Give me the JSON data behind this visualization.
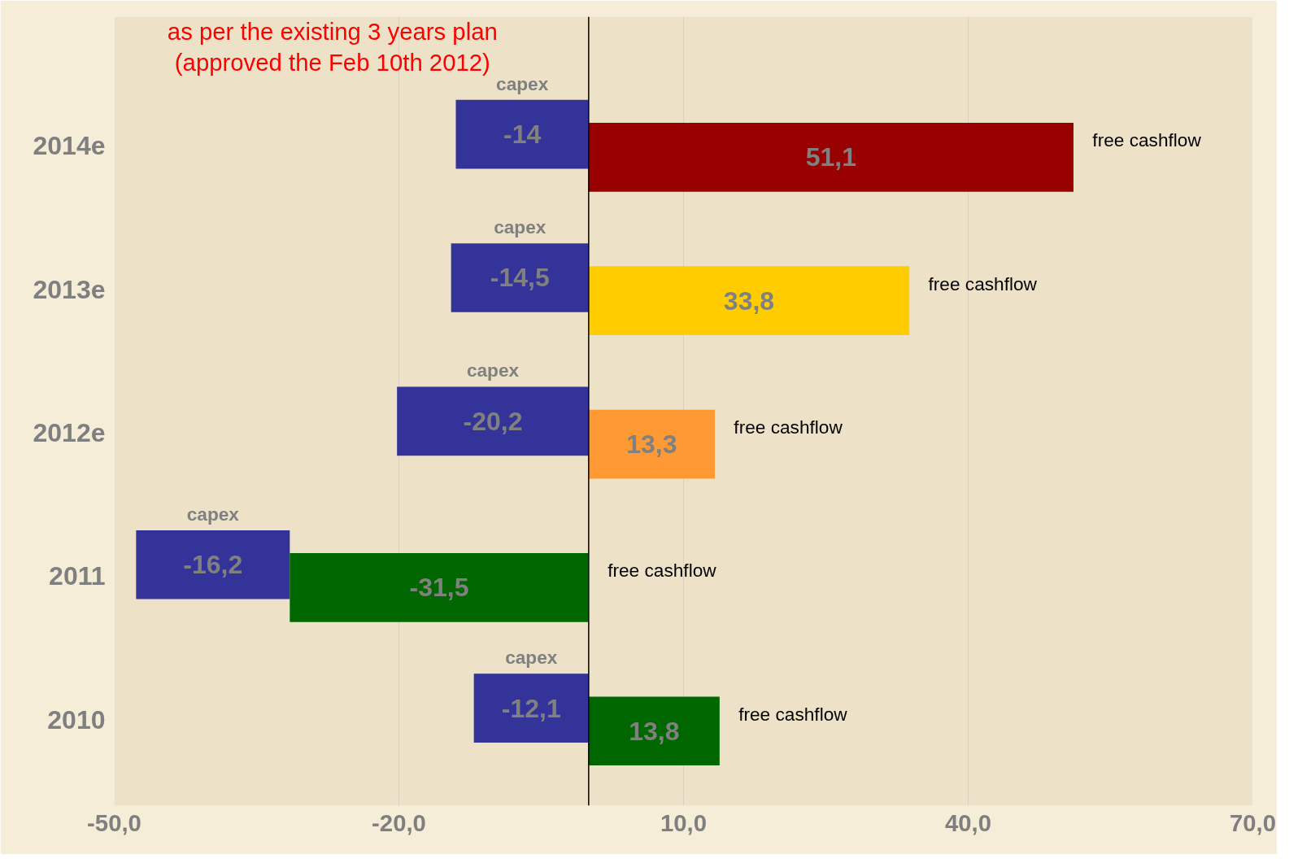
{
  "chart_data": {
    "type": "bar",
    "orientation": "horizontal",
    "title": "as per the existing 3 years plan\n(approved the Feb 10th 2012)",
    "categories": [
      "2014e",
      "2013e",
      "2012e",
      "2011",
      "2010"
    ],
    "series": [
      {
        "name": "capex",
        "color": "#333399",
        "values": [
          -14,
          -14.5,
          -20.2,
          -16.2,
          -12.1
        ],
        "base": [
          0,
          0,
          0,
          -31.5,
          0
        ],
        "value_labels": [
          "-14",
          "-14,5",
          "-20,2",
          "-16,2",
          "-12,1"
        ]
      },
      {
        "name": "free cashflow",
        "colors": [
          "#990000",
          "#ffcc00",
          "#ff9933",
          "#006600",
          "#006600"
        ],
        "values": [
          51.1,
          33.8,
          13.3,
          -31.5,
          13.8
        ],
        "value_labels": [
          "51,1",
          "33,8",
          "13,3",
          "-31,5",
          "13,8"
        ]
      }
    ],
    "xlim": [
      -50,
      70
    ],
    "xticks": [
      {
        "value": -50,
        "label": "-50,0"
      },
      {
        "value": -20,
        "label": "-20,0"
      },
      {
        "value": 10,
        "label": "10,0"
      },
      {
        "value": 40,
        "label": "40,0"
      },
      {
        "value": 70,
        "label": "70,0"
      }
    ],
    "ref_lines": [
      {
        "axis": "x",
        "value": 0,
        "color": "#000000"
      }
    ],
    "grid": "x"
  }
}
